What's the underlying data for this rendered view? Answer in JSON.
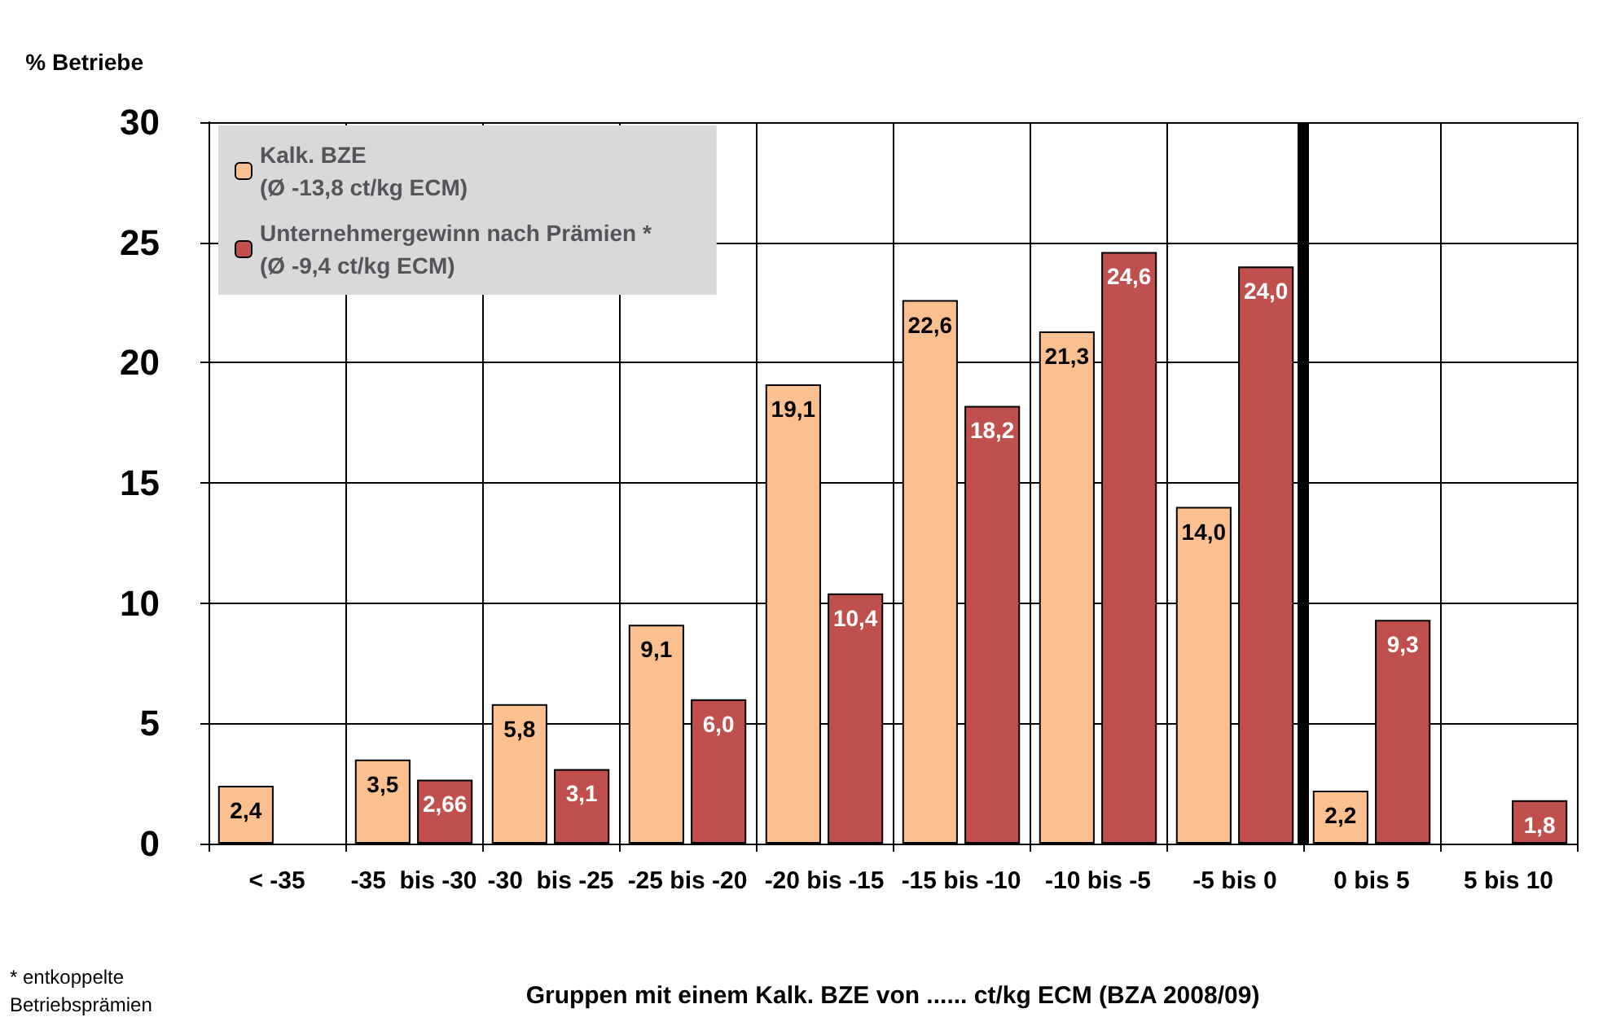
{
  "chart_data": {
    "type": "bar",
    "ylabel": "% Betriebe",
    "xlabel": "Gruppen mit einem Kalk. BZE von ...... ct/kg ECM (BZA 2008/09)",
    "annotations": [
      "* entkoppelte Betriebsprämien"
    ],
    "categories": [
      "< -35",
      "-35  bis -30",
      "-30  bis -25",
      "-25 bis -20",
      "-20 bis -15",
      "-15 bis -10",
      "-10 bis -5",
      "-5 bis 0",
      "0 bis 5",
      "5 bis 10"
    ],
    "series": [
      {
        "name": "Kalk. BZE\n(Ø -13,8 ct/kg ECM)",
        "color": "#fac08f",
        "values": [
          2.4,
          3.5,
          5.8,
          9.1,
          19.1,
          22.6,
          21.3,
          14.0,
          2.2,
          null
        ],
        "value_labels": [
          "2,4",
          "3,5",
          "5,8",
          "9,1",
          "19,1",
          "22,6",
          "21,3",
          "14,0",
          "2,2",
          null
        ]
      },
      {
        "name": "Unternehmergewinn nach Prämien *\n(Ø -9,4 ct/kg ECM)",
        "color": "#c0504d",
        "values": [
          null,
          2.66,
          3.1,
          6.0,
          10.4,
          18.2,
          24.6,
          24.0,
          9.3,
          1.8
        ],
        "value_labels": [
          null,
          "2,66",
          "3,1",
          "6,0",
          "10,4",
          "18,2",
          "24,6",
          "24,0",
          "9,3",
          "1,8"
        ]
      }
    ],
    "ref_lines": [
      {
        "axis": "x",
        "value": "0 bis 5",
        "color": "#000000"
      }
    ],
    "ylim": [
      0,
      30
    ],
    "yticks": [
      0,
      5,
      10,
      15,
      20,
      25,
      30
    ],
    "grid": true,
    "legend": "top left"
  }
}
